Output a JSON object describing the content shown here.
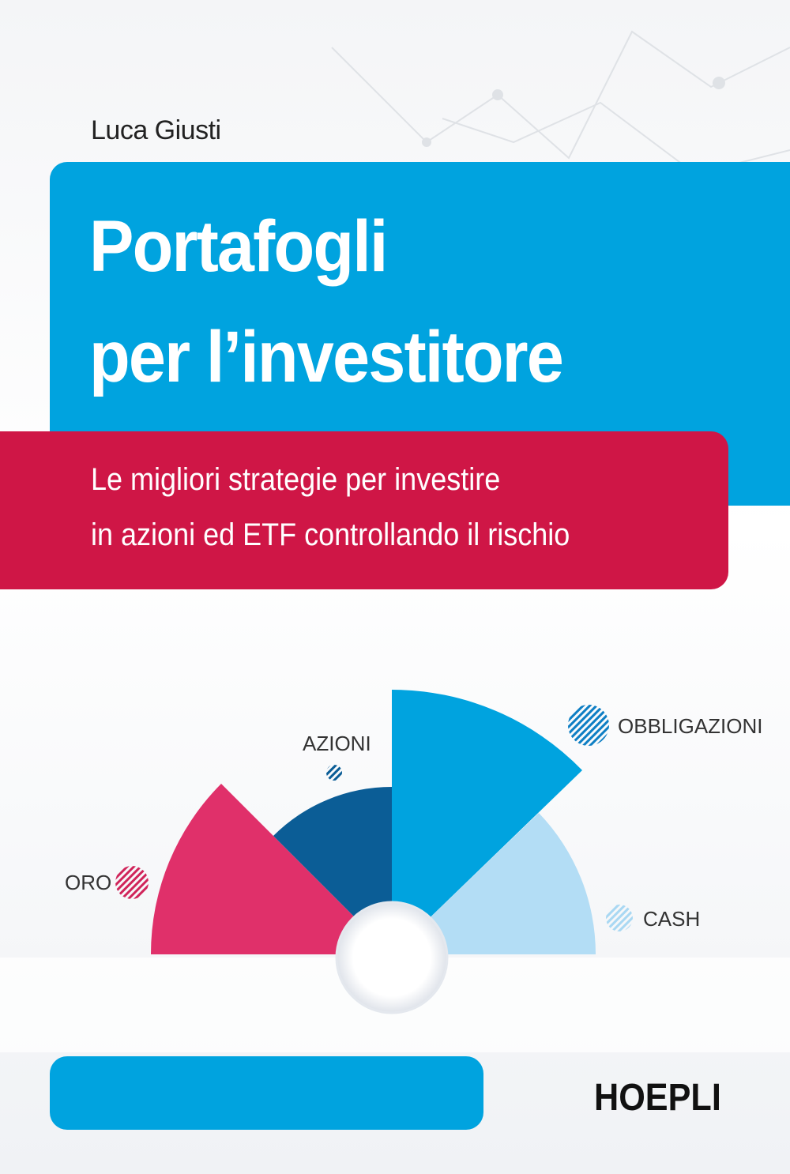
{
  "author": "Luca Giusti",
  "title": [
    "Portafogli",
    "per l’investitore"
  ],
  "subtitle": [
    "Le migliori strategie per investire",
    "in azioni ed ETF controllando il rischio"
  ],
  "legend": {
    "azioni": "AZIONI",
    "obbligazioni": "OBBLIGAZIONI",
    "oro": "ORO",
    "cash": "CASH"
  },
  "publisher": "HOEPLI"
}
